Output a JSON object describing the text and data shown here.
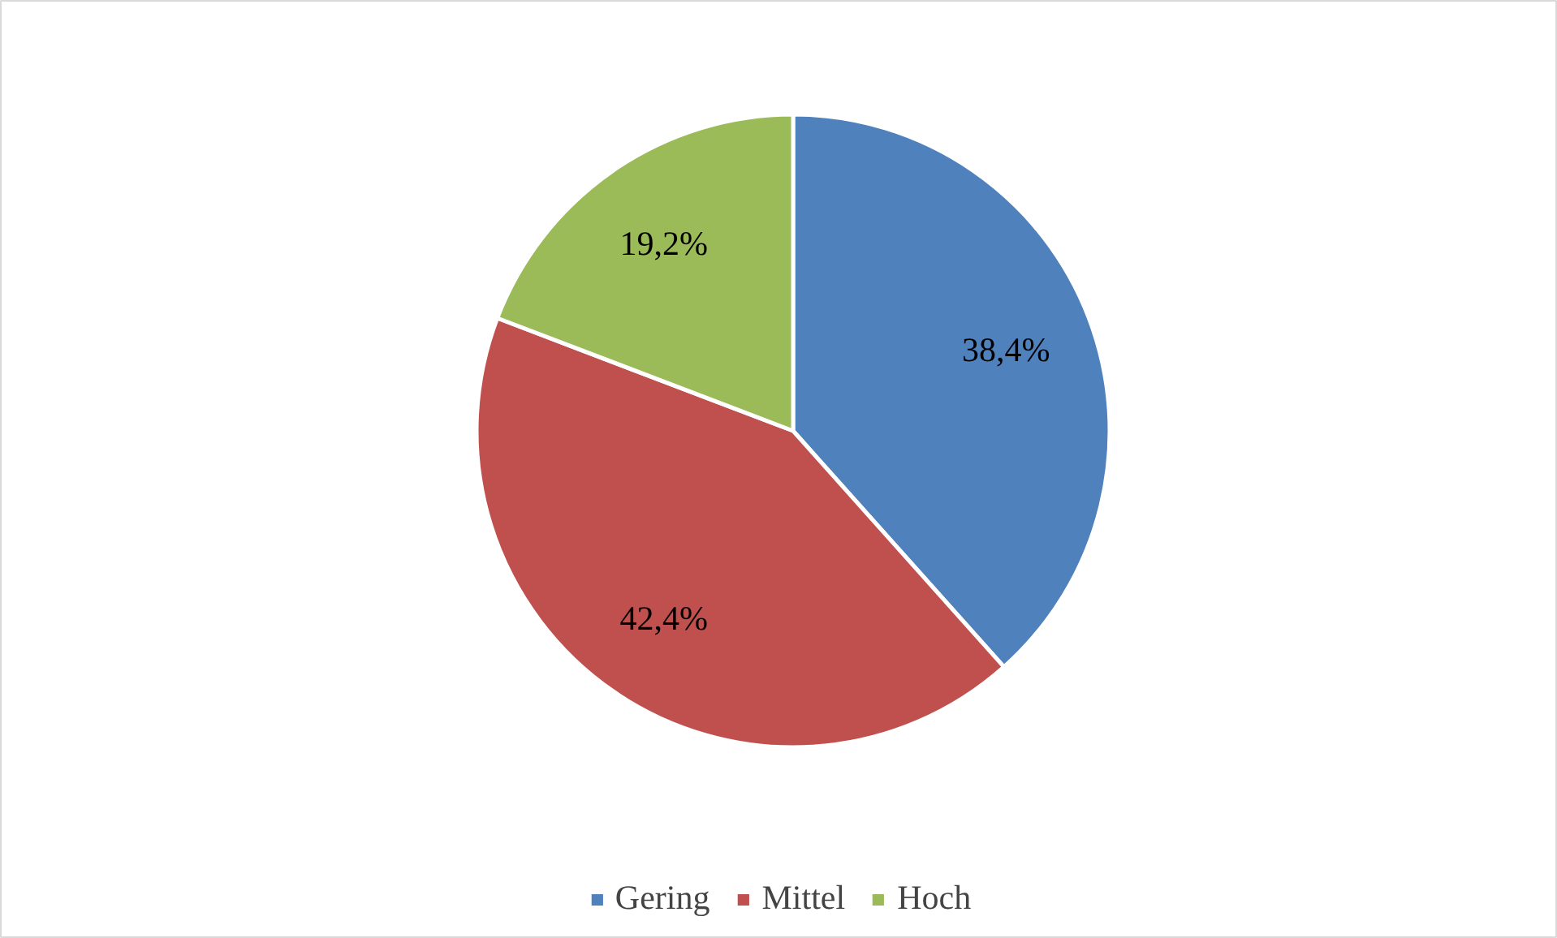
{
  "chart_data": {
    "type": "pie",
    "categories": [
      "Gering",
      "Mittel",
      "Hoch"
    ],
    "values": [
      38.4,
      42.4,
      19.2
    ],
    "colors": [
      "#4f81bd",
      "#c0504d",
      "#9bbb59"
    ],
    "value_labels": [
      "38,4%",
      "42,4%",
      "19,2%"
    ],
    "legend": "bottom"
  }
}
